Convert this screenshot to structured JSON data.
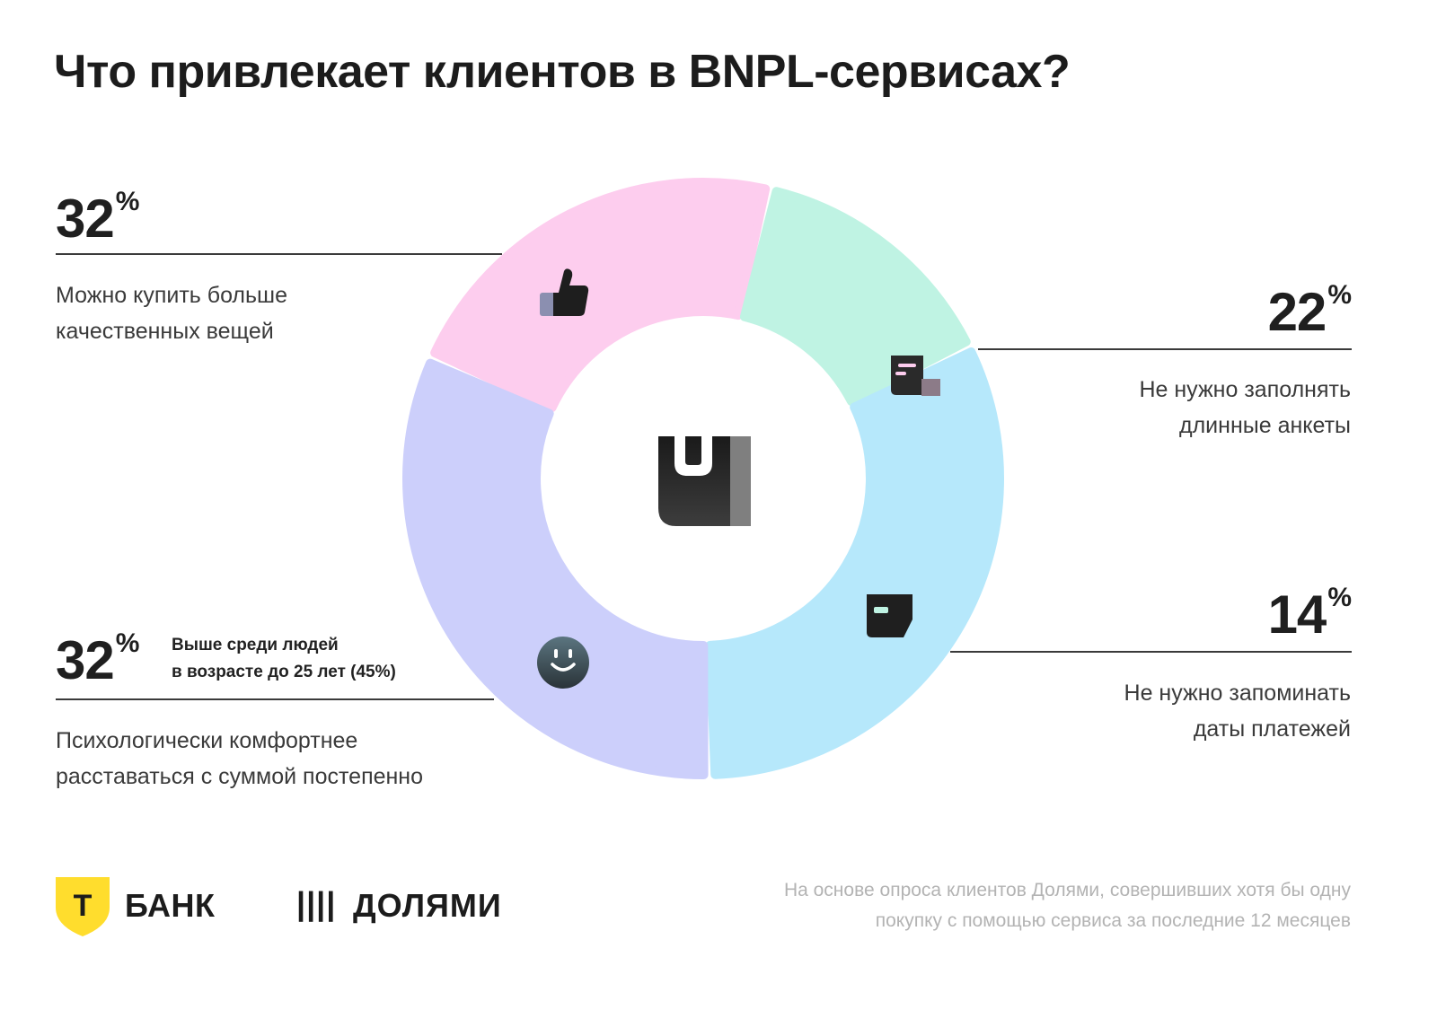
{
  "title": "Что привлекает клиентов в BNPL-сервисах?",
  "chart_data": {
    "type": "pie",
    "style": "donut",
    "unit": "%",
    "categories": [
      "Можно купить больше качественных вещей",
      "Не нужно заполнять длинные анкеты",
      "Не нужно запоминать даты платежей",
      "Психологически комфортнее расставаться с суммой постепенно"
    ],
    "values": [
      32,
      22,
      14,
      32
    ],
    "colors": [
      "#cccffb",
      "#fdcdee",
      "#bff3e3",
      "#b6e8fb"
    ],
    "icons": [
      "thumbs-up-icon",
      "document-icon",
      "card-icon",
      "smiley-face-icon"
    ],
    "center_icon": "dolyami-logo-icon"
  },
  "segments": [
    {
      "value": "32",
      "unit": "%",
      "lines": [
        "Можно купить больше",
        "качественных вещей"
      ]
    },
    {
      "value": "22",
      "unit": "%",
      "lines": [
        "Не нужно заполнять",
        "длинные анкеты"
      ]
    },
    {
      "value": "14",
      "unit": "%",
      "lines": [
        "Не нужно запоминать",
        "даты платежей"
      ]
    },
    {
      "value": "32",
      "unit": "%",
      "note_lines": [
        "Выше среди людей",
        "в возрасте до 25 лет (45%)"
      ],
      "lines": [
        "Психологически комфортнее",
        "расставаться с суммой постепенно"
      ]
    }
  ],
  "footer": {
    "tbank_letter": "Т",
    "tbank_label": "БАНК",
    "dolyami_bars": "||||",
    "dolyami_label": "ДОЛЯМИ",
    "source_lines": [
      "На основе опроса клиентов Долями, совершивших хотя бы одну",
      "покупку с помощью сервиса за последние 12 месяцев"
    ]
  }
}
